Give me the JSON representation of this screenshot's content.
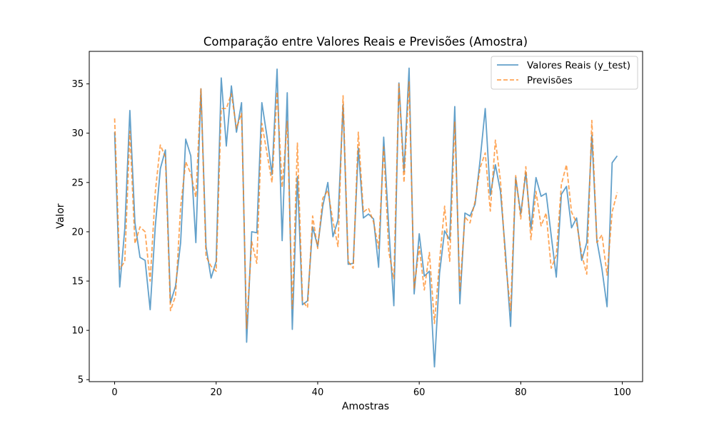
{
  "chart_data": {
    "type": "line",
    "title": "Comparação entre Valores Reais e Previsões (Amostra)",
    "xlabel": "Amostras",
    "ylabel": "Valor",
    "xlim": [
      -5,
      104
    ],
    "ylim": [
      4.8,
      38.3
    ],
    "xticks": [
      0,
      20,
      40,
      60,
      80,
      100
    ],
    "yticks": [
      5,
      10,
      15,
      20,
      25,
      30,
      35
    ],
    "grid": false,
    "legend": "top-right",
    "x": [
      0,
      1,
      2,
      3,
      4,
      5,
      6,
      7,
      8,
      9,
      10,
      11,
      12,
      13,
      14,
      15,
      16,
      17,
      18,
      19,
      20,
      21,
      22,
      23,
      24,
      25,
      26,
      27,
      28,
      29,
      30,
      31,
      32,
      33,
      34,
      35,
      36,
      37,
      38,
      39,
      40,
      41,
      42,
      43,
      44,
      45,
      46,
      47,
      48,
      49,
      50,
      51,
      52,
      53,
      54,
      55,
      56,
      57,
      58,
      59,
      60,
      61,
      62,
      63,
      64,
      65,
      66,
      67,
      68,
      69,
      70,
      71,
      72,
      73,
      74,
      75,
      76,
      77,
      78,
      79,
      80,
      81,
      82,
      83,
      84,
      85,
      86,
      87,
      88,
      89,
      90,
      91,
      92,
      93,
      94,
      95,
      96,
      97,
      98,
      99
    ],
    "series": [
      {
        "name": "Valores Reais (y_test)",
        "color": "#1f77b4",
        "style": "solid",
        "values": [
          30.1,
          14.4,
          20.3,
          32.3,
          20.9,
          17.4,
          17.1,
          12.1,
          20.5,
          26.4,
          28.3,
          12.8,
          14.5,
          18.9,
          29.4,
          27.7,
          18.9,
          34.5,
          18.5,
          15.3,
          17.0,
          35.6,
          28.7,
          34.8,
          30.1,
          33.1,
          8.8,
          20.0,
          19.9,
          33.1,
          29.7,
          25.8,
          36.5,
          19.1,
          34.1,
          10.1,
          25.6,
          12.6,
          13.0,
          20.5,
          18.5,
          22.6,
          25.0,
          19.5,
          21.2,
          32.9,
          16.7,
          16.8,
          28.5,
          21.4,
          21.8,
          21.3,
          16.4,
          29.6,
          20.4,
          12.5,
          35.1,
          26.1,
          36.6,
          13.7,
          19.8,
          15.5,
          16.0,
          6.3,
          15.8,
          20.1,
          19.2,
          32.7,
          12.7,
          21.9,
          21.6,
          22.8,
          27.3,
          32.5,
          23.7,
          26.8,
          24.1,
          17.8,
          10.4,
          25.5,
          21.8,
          26.0,
          20.3,
          25.5,
          23.6,
          23.9,
          19.6,
          15.4,
          23.8,
          24.6,
          20.4,
          21.4,
          17.1,
          18.9,
          29.8,
          19.1,
          16.2,
          12.4,
          27.0,
          27.7
        ]
      },
      {
        "name": "Previsões",
        "color": "#ff7f0e",
        "style": "dashed",
        "values": [
          31.5,
          16.2,
          17.0,
          30.2,
          18.8,
          20.5,
          20.0,
          15.0,
          24.0,
          28.8,
          27.6,
          12.0,
          13.5,
          22.5,
          27.1,
          25.9,
          23.5,
          34.5,
          17.5,
          16.5,
          16.0,
          32.5,
          32.5,
          34.0,
          30.5,
          32.0,
          10.2,
          19.0,
          16.8,
          31.0,
          28.0,
          25.0,
          34.2,
          24.5,
          31.2,
          12.2,
          29.0,
          13.0,
          12.3,
          21.6,
          18.3,
          23.4,
          24.2,
          21.1,
          18.5,
          33.8,
          17.0,
          16.3,
          30.1,
          22.0,
          22.4,
          21.0,
          18.3,
          28.6,
          18.0,
          15.2,
          35.0,
          25.0,
          35.2,
          14.2,
          18.5,
          14.1,
          17.9,
          10.7,
          17.0,
          22.6,
          17.0,
          31.2,
          14.0,
          21.5,
          20.9,
          23.1,
          26.5,
          28.0,
          22.1,
          29.3,
          25.2,
          17.0,
          12.0,
          25.7,
          21.3,
          26.6,
          19.2,
          24.1,
          20.6,
          21.9,
          16.3,
          17.6,
          24.8,
          26.8,
          22.0,
          20.9,
          17.7,
          15.7,
          31.3,
          18.9,
          19.7,
          15.6,
          22.0,
          24.0
        ]
      }
    ]
  }
}
